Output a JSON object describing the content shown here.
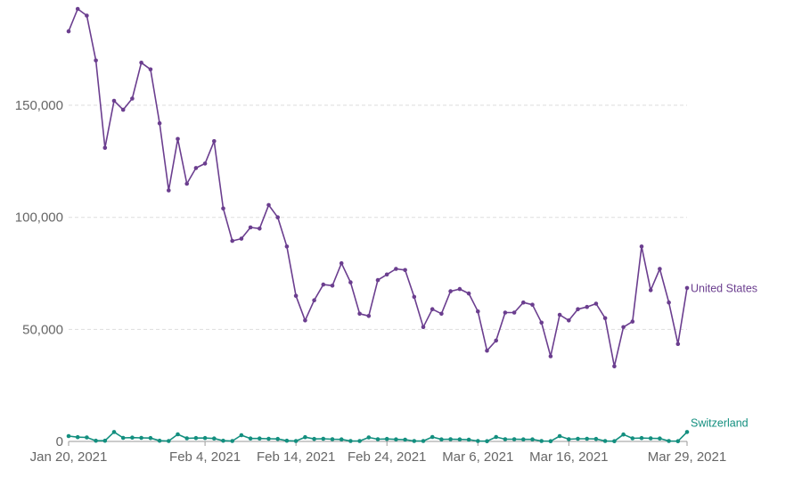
{
  "chart_data": {
    "type": "line",
    "title": "",
    "xlabel": "",
    "ylabel": "",
    "x_start": "Jan 20, 2021",
    "x_end": "Mar 29, 2021",
    "x_tick_labels": [
      "Jan 20, 2021",
      "Feb 4, 2021",
      "Feb 14, 2021",
      "Feb 24, 2021",
      "Mar 6, 2021",
      "Mar 16, 2021",
      "Mar 29, 2021"
    ],
    "y_tick_labels": [
      "0",
      "50,000",
      "100,000",
      "150,000"
    ],
    "y_ticks": [
      0,
      50000,
      100000,
      150000
    ],
    "ylim": [
      0,
      193000
    ],
    "grid": true,
    "series": [
      {
        "name": "United States",
        "color": "#6b3e8f",
        "values": [
          183000,
          193000,
          190000,
          170000,
          131000,
          152000,
          148000,
          153000,
          169000,
          166000,
          142000,
          112000,
          135000,
          115000,
          122000,
          124000,
          134000,
          104000,
          89500,
          90500,
          95500,
          95000,
          105500,
          100000,
          87000,
          65000,
          54000,
          63000,
          70000,
          69500,
          79500,
          71000,
          57000,
          56000,
          72000,
          74500,
          77000,
          76500,
          64500,
          51000,
          59000,
          57000,
          67000,
          68000,
          66000,
          58000,
          40500,
          45000,
          57500,
          57500,
          62000,
          61000,
          53000,
          38000,
          56500,
          54000,
          59000,
          60000,
          61500,
          55000,
          33500,
          51000,
          53500,
          87000,
          67500,
          77000,
          62000,
          43500,
          68500
        ]
      },
      {
        "name": "Switzerland",
        "color": "#138f7f",
        "values": [
          2400,
          1900,
          1800,
          300,
          300,
          4200,
          1600,
          1700,
          1600,
          1500,
          300,
          200,
          3200,
          1400,
          1500,
          1500,
          1300,
          300,
          200,
          2800,
          1300,
          1300,
          1200,
          1100,
          300,
          200,
          1900,
          1100,
          1200,
          1000,
          900,
          200,
          200,
          1800,
          1000,
          1100,
          900,
          800,
          200,
          200,
          2000,
          900,
          1000,
          900,
          800,
          200,
          100,
          2000,
          1000,
          1000,
          900,
          900,
          200,
          100,
          2400,
          1000,
          1200,
          1200,
          1100,
          200,
          100,
          3100,
          1400,
          1500,
          1400,
          1300,
          200,
          100,
          4200
        ]
      }
    ]
  }
}
